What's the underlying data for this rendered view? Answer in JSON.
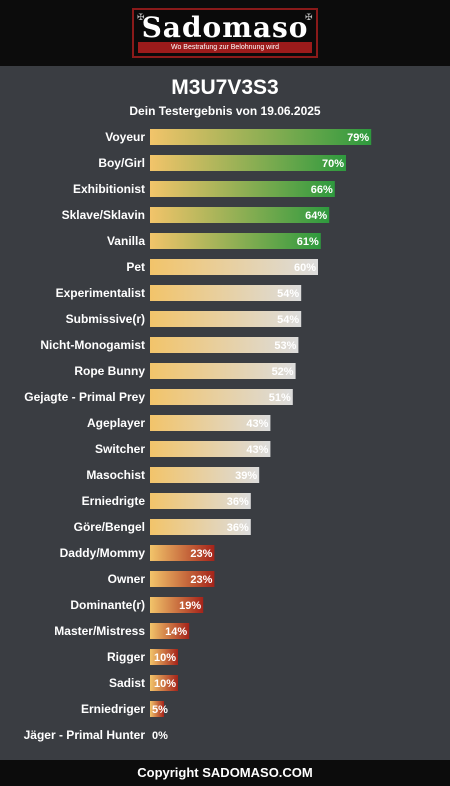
{
  "header": {
    "logo_text": "Sadomaso",
    "logo_tagline": "Wo Bestrafung zur Belohnung wird",
    "logo_icon": "skull-cross-icon"
  },
  "title": "M3U7V3S3",
  "subtitle": "Dein Testergebnis von 19.06.2025",
  "footer": "Copyright SADOMASO.COM",
  "colors": {
    "background": "#3a3d42",
    "bar_start": "#f2c46a",
    "high_end": "#2e9a3e",
    "mid_end": "#dcdcdc",
    "low_end": "#a5231a"
  },
  "chart_data": {
    "type": "bar",
    "orientation": "horizontal",
    "xlim": [
      0,
      100
    ],
    "grid": false,
    "categories": [
      "Voyeur",
      "Boy/Girl",
      "Exhibitionist",
      "Sklave/Sklavin",
      "Vanilla",
      "Pet",
      "Experimentalist",
      "Submissive(r)",
      "Nicht-Monogamist",
      "Rope Bunny",
      "Gejagte - Primal Prey",
      "Ageplayer",
      "Switcher",
      "Masochist",
      "Erniedrigte",
      "Göre/Bengel",
      "Daddy/Mommy",
      "Owner",
      "Dominante(r)",
      "Master/Mistress",
      "Rigger",
      "Sadist",
      "Erniedriger",
      "Jäger - Primal Hunter"
    ],
    "values": [
      79,
      70,
      66,
      64,
      61,
      60,
      54,
      54,
      53,
      52,
      51,
      43,
      43,
      39,
      36,
      36,
      23,
      23,
      19,
      14,
      10,
      10,
      5,
      0
    ],
    "value_labels": [
      "79%",
      "70%",
      "66%",
      "64%",
      "61%",
      "60%",
      "54%",
      "54%",
      "53%",
      "52%",
      "51%",
      "43%",
      "43%",
      "39%",
      "36%",
      "36%",
      "23%",
      "23%",
      "19%",
      "14%",
      "10%",
      "10%",
      "5%",
      "0%"
    ]
  }
}
